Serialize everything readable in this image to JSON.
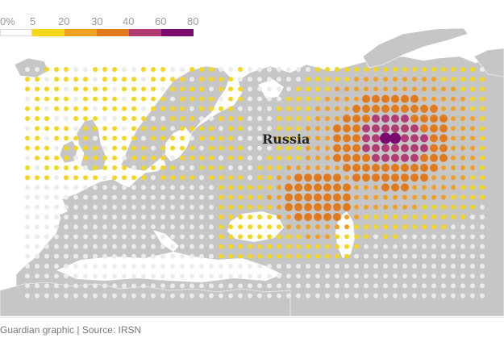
{
  "legend": {
    "labels": [
      "0%",
      "5",
      "20",
      "30",
      "40",
      "60",
      "80"
    ],
    "colors": [
      "#ffffff",
      "#f4d61c",
      "#f2a023",
      "#e07a1c",
      "#b23b74",
      "#7a0a6e"
    ]
  },
  "map": {
    "label": "Russia",
    "land_color": "#c6c6c6",
    "border_color": "#ffffff",
    "sea_color": "#ffffff",
    "no_data_dot": "#ececec"
  },
  "source": "Guardian graphic | Source: IRSN"
}
